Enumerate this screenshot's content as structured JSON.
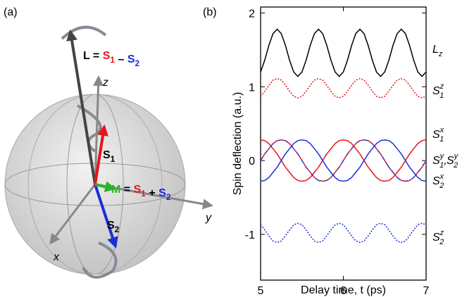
{
  "diagram": {
    "panel_label": "(a)",
    "L_label": [
      {
        "text": "L",
        "color": "#000000"
      },
      {
        "text": " = ",
        "color": "#000000"
      },
      {
        "text": "S",
        "color": "#e8141c",
        "sub": "1"
      },
      {
        "text": " – ",
        "color": "#000000"
      },
      {
        "text": "S",
        "color": "#1a2fd6",
        "sub": "2"
      }
    ],
    "M_label": [
      {
        "text": "M",
        "color": "#2bb32b"
      },
      {
        "text": " = ",
        "color": "#000000"
      },
      {
        "text": "S",
        "color": "#e8141c",
        "sub": "1"
      },
      {
        "text": " + ",
        "color": "#000000"
      },
      {
        "text": "S",
        "color": "#1a2fd6",
        "sub": "2"
      }
    ],
    "S1_label": {
      "text": "S",
      "sub": "1"
    },
    "S2_label": {
      "text": "S",
      "sub": "2"
    },
    "axis_x": "x",
    "axis_y": "y",
    "axis_z": "z"
  },
  "chart_data": {
    "type": "line",
    "panel_label": "(b)",
    "x_label": "Delay time, t (ps)",
    "y_label": "Spin deflection (a.u.)",
    "xlim": [
      5,
      7
    ],
    "ylim": [
      -1.62,
      2.08
    ],
    "xticks": [
      5,
      6,
      7
    ],
    "yticks": [
      -1,
      0,
      1,
      2
    ],
    "x": [
      5,
      5.05,
      5.1,
      5.15,
      5.2,
      5.25,
      5.3,
      5.35,
      5.4,
      5.45,
      5.5,
      5.55,
      5.6,
      5.65,
      5.7,
      5.75,
      5.8,
      5.85,
      5.9,
      5.95,
      6,
      6.05,
      6.1,
      6.15,
      6.2,
      6.25,
      6.3,
      6.35,
      6.4,
      6.45,
      6.5,
      6.55,
      6.6,
      6.65,
      6.7,
      6.75,
      6.8,
      6.85,
      6.9,
      6.95,
      7
    ],
    "series": [
      {
        "name": "L",
        "sub": "z",
        "color": "#000000",
        "linestyle": "solid",
        "values": [
          1.2,
          1.36,
          1.56,
          1.72,
          1.78,
          1.72,
          1.56,
          1.36,
          1.2,
          1.14,
          1.2,
          1.36,
          1.56,
          1.72,
          1.78,
          1.72,
          1.56,
          1.36,
          1.2,
          1.14,
          1.2,
          1.36,
          1.56,
          1.72,
          1.78,
          1.72,
          1.56,
          1.36,
          1.2,
          1.14,
          1.2,
          1.36,
          1.56,
          1.72,
          1.78,
          1.72,
          1.56,
          1.36,
          1.2,
          1.14,
          1.2
        ]
      },
      {
        "name": "S",
        "sub": "1",
        "sup": "z",
        "color": "#e8141c",
        "linestyle": "dotted",
        "values": [
          0.87,
          0.94,
          1.02,
          1.09,
          1.11,
          1.09,
          1.02,
          0.94,
          0.87,
          0.85,
          0.87,
          0.94,
          1.02,
          1.09,
          1.11,
          1.09,
          1.02,
          0.94,
          0.87,
          0.85,
          0.87,
          0.94,
          1.02,
          1.09,
          1.11,
          1.09,
          1.02,
          0.94,
          0.87,
          0.85,
          0.87,
          0.94,
          1.02,
          1.09,
          1.11,
          1.09,
          1.02,
          0.94,
          0.87,
          0.85,
          0.87
        ]
      },
      {
        "name": "S",
        "sub": "1",
        "sup": "x",
        "color": "#e8141c",
        "linestyle": "solid",
        "values": [
          0.28,
          0.27,
          0.23,
          0.16,
          0.09,
          0,
          -0.09,
          -0.16,
          -0.23,
          -0.27,
          -0.28,
          -0.27,
          -0.23,
          -0.16,
          -0.09,
          0,
          0.09,
          0.16,
          0.23,
          0.27,
          0.28,
          0.27,
          0.23,
          0.16,
          0.09,
          0,
          -0.09,
          -0.16,
          -0.23,
          -0.27,
          -0.28,
          -0.27,
          -0.23,
          -0.16,
          -0.09,
          0,
          0.09,
          0.16,
          0.23,
          0.27,
          0.28
        ]
      },
      {
        "name": "S",
        "sub": "1",
        "sup": "y",
        "label_suffix": ",",
        "color": "#e8141c",
        "linestyle": "dashed",
        "values": [
          0,
          0.09,
          0.16,
          0.23,
          0.27,
          0.28,
          0.27,
          0.23,
          0.16,
          0.09,
          0,
          -0.09,
          -0.16,
          -0.23,
          -0.27,
          -0.28,
          -0.27,
          -0.23,
          -0.16,
          -0.09,
          0,
          0.09,
          0.16,
          0.23,
          0.27,
          0.28,
          0.27,
          0.23,
          0.16,
          0.09,
          0,
          -0.09,
          -0.16,
          -0.23,
          -0.27,
          -0.28,
          -0.27,
          -0.23,
          -0.16,
          -0.09,
          0
        ]
      },
      {
        "name": "S",
        "sub": "2",
        "sup": "y",
        "color": "#1a2fd6",
        "linestyle": "dashed",
        "values": [
          0,
          0.09,
          0.16,
          0.23,
          0.27,
          0.28,
          0.27,
          0.23,
          0.16,
          0.09,
          0,
          -0.09,
          -0.16,
          -0.23,
          -0.27,
          -0.28,
          -0.27,
          -0.23,
          -0.16,
          -0.09,
          0,
          0.09,
          0.16,
          0.23,
          0.27,
          0.28,
          0.27,
          0.23,
          0.16,
          0.09,
          0,
          -0.09,
          -0.16,
          -0.23,
          -0.27,
          -0.28,
          -0.27,
          -0.23,
          -0.16,
          -0.09,
          0
        ]
      },
      {
        "name": "S",
        "sub": "2",
        "sup": "x",
        "color": "#1a2fd6",
        "linestyle": "solid",
        "values": [
          -0.28,
          -0.27,
          -0.23,
          -0.16,
          -0.09,
          0,
          0.09,
          0.16,
          0.23,
          0.27,
          0.28,
          0.27,
          0.23,
          0.16,
          0.09,
          0,
          -0.09,
          -0.16,
          -0.23,
          -0.27,
          -0.28,
          -0.27,
          -0.23,
          -0.16,
          -0.09,
          0,
          0.09,
          0.16,
          0.23,
          0.27,
          0.28,
          0.27,
          0.23,
          0.16,
          0.09,
          0,
          -0.09,
          -0.16,
          -0.23,
          -0.27,
          -0.28
        ]
      },
      {
        "name": "S",
        "sub": "2",
        "sup": "z",
        "color": "#1a2fd6",
        "linestyle": "dotted",
        "values": [
          -0.87,
          -0.94,
          -1.02,
          -1.09,
          -1.11,
          -1.09,
          -1.02,
          -0.94,
          -0.87,
          -0.85,
          -0.87,
          -0.94,
          -1.02,
          -1.09,
          -1.11,
          -1.09,
          -1.02,
          -0.94,
          -0.87,
          -0.85,
          -0.87,
          -0.94,
          -1.02,
          -1.09,
          -1.11,
          -1.09,
          -1.02,
          -0.94,
          -0.87,
          -0.85,
          -0.87,
          -0.94,
          -1.02,
          -1.09,
          -1.11,
          -1.09,
          -1.02,
          -0.94,
          -0.87,
          -0.85,
          -0.87
        ]
      }
    ]
  }
}
